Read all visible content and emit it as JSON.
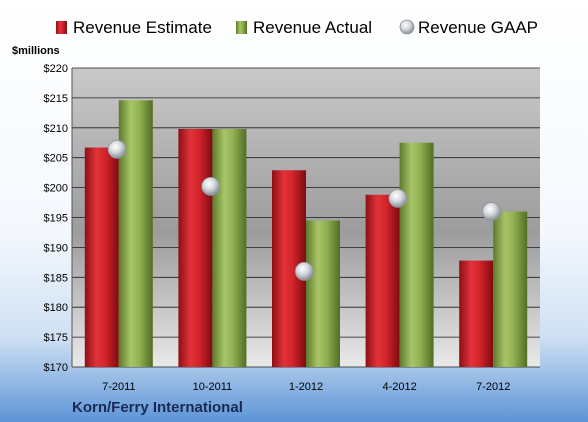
{
  "chart_data": {
    "type": "bar",
    "title": "",
    "company": "Korn/Ferry International",
    "units_label": "$millions",
    "categories": [
      "7-2011",
      "10-2011",
      "1-2012",
      "4-2012",
      "7-2012"
    ],
    "series": [
      {
        "name": "Revenue Estimate",
        "kind": "bar",
        "color": "#cc1f26",
        "values": [
          206.7,
          209.8,
          202.9,
          198.8,
          187.8
        ]
      },
      {
        "name": "Revenue Actual",
        "kind": "bar",
        "color": "#8aa84a",
        "values": [
          214.6,
          209.8,
          194.5,
          207.5,
          196.0
        ]
      },
      {
        "name": "Revenue GAAP",
        "kind": "point",
        "color": "#c9ccd2",
        "values": [
          206.4,
          200.2,
          186.0,
          198.2,
          196.0
        ]
      }
    ],
    "ylim": [
      170,
      220
    ],
    "yticks": [
      "$170",
      "$175",
      "$180",
      "$185",
      "$190",
      "$195",
      "$200",
      "$205",
      "$210",
      "$215",
      "$220"
    ],
    "ytick_values": [
      170,
      175,
      180,
      185,
      190,
      195,
      200,
      205,
      210,
      215,
      220
    ],
    "grid": true,
    "legend_position": "top"
  }
}
